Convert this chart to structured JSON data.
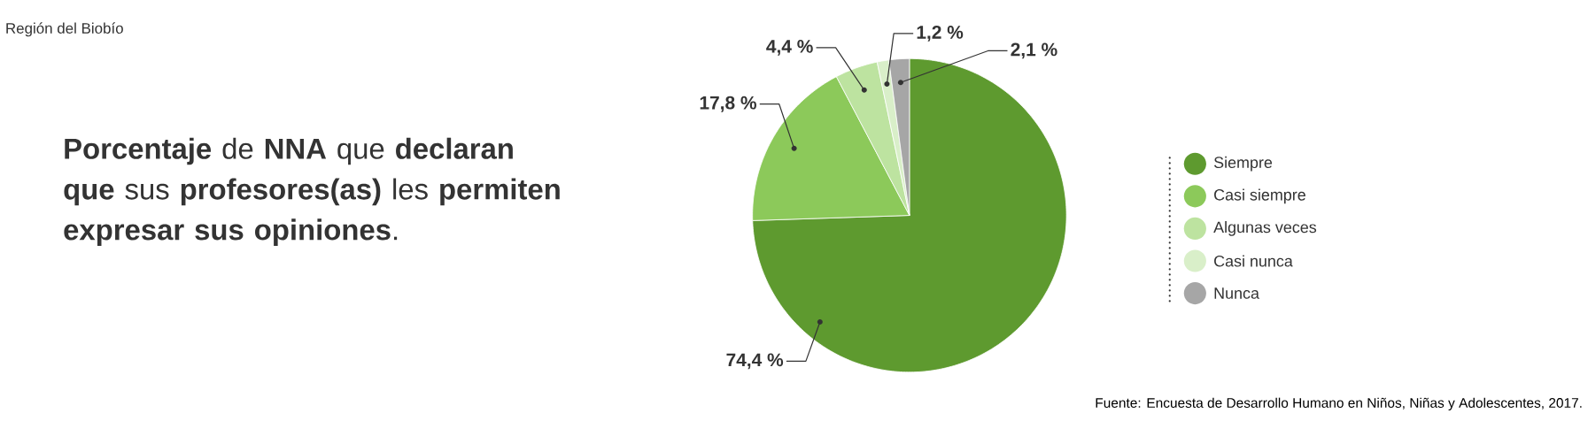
{
  "chart_data": {
    "type": "pie",
    "title": "**Porcentaje** de **NNA** que **declaran que** sus **profesores(as)** les **permiten expresar sus opiniones**.",
    "subtitle": "Región del Biobío",
    "categories": [
      "Siempre",
      "Casi siempre",
      "Algunas veces",
      "Casi nunca",
      "Nunca"
    ],
    "values": [
      74.4,
      17.8,
      4.4,
      1.2,
      2.1
    ],
    "colors": [
      "#5e9a2f",
      "#8cc95a",
      "#bde3a0",
      "#d9efc9",
      "#a6a6a6"
    ],
    "value_labels": [
      "74,4 %",
      "17,8 %",
      "4,4 %",
      "1,2 %",
      "2,1 %"
    ],
    "legend": "right",
    "annotations": [
      "Fuente: Encuesta de Desarrollo Humano en Niños, Niñas y Adolescentes, 2017."
    ]
  }
}
